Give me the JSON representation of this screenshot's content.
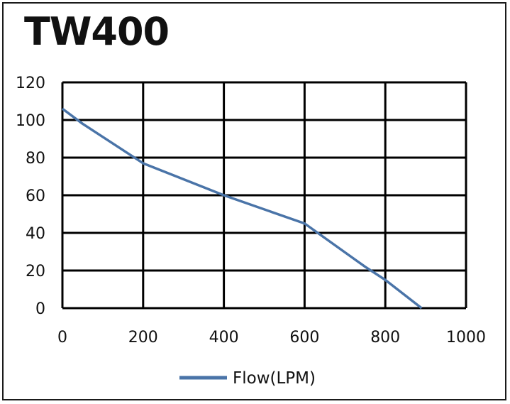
{
  "title": "TW400",
  "chart_data": {
    "type": "line",
    "title": "TW400",
    "xlabel": "",
    "ylabel": "",
    "xlim": [
      0,
      1000
    ],
    "ylim": [
      0,
      120
    ],
    "x_ticks": [
      "0",
      "200",
      "400",
      "600",
      "800",
      "1000"
    ],
    "y_ticks": [
      "0",
      "20",
      "40",
      "60",
      "80",
      "100",
      "120"
    ],
    "grid": true,
    "legend_position": "bottom",
    "series": [
      {
        "name": "Flow(LPM)",
        "color": "#4a74a8",
        "x": [
          0,
          50,
          200,
          400,
          600,
          750,
          800,
          890
        ],
        "y": [
          106,
          98,
          77,
          60,
          45,
          22,
          15,
          0
        ]
      }
    ]
  }
}
